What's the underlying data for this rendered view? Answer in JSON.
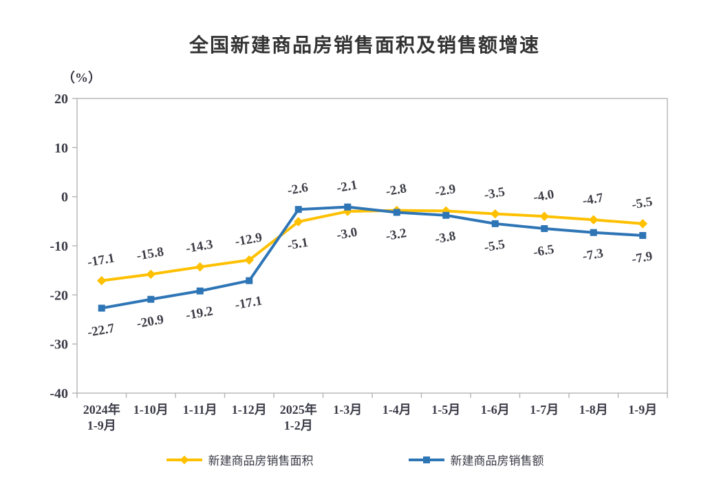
{
  "chart": {
    "title": "全国新建商品房销售面积及销售额增速",
    "unit_label": "（%）",
    "colors": {
      "area_series": "#FFC000",
      "sales_series": "#2E75B6",
      "axis_border": "#b3b3b3",
      "tick_label": "#3a3a46",
      "data_label": "#3c3c46"
    },
    "legend": [
      {
        "label": "新建商品房销售面积",
        "marker": "diamond",
        "color": "#FFC000"
      },
      {
        "label": "新建商品房销售额",
        "marker": "square",
        "color": "#2E75B6"
      }
    ]
  },
  "chart_data": {
    "type": "line",
    "title": "全国新建商品房销售面积及销售额增速",
    "ylabel": "（%）",
    "xlabel": "",
    "ylim": [
      -40,
      20
    ],
    "yticks": [
      20,
      10,
      0,
      -10,
      -20,
      -30,
      -40
    ],
    "ytick_labels": [
      "20",
      "10",
      "0",
      "-10",
      "-20",
      "-30",
      "-40"
    ],
    "grid": false,
    "legend_position": "bottom",
    "categories": [
      "2024年\n1-9月",
      "1-10月",
      "1-11月",
      "1-12月",
      "2025年\n1-2月",
      "1-3月",
      "1-4月",
      "1-5月",
      "1-6月",
      "1-7月",
      "1-8月",
      "1-9月"
    ],
    "series": [
      {
        "name": "新建商品房销售面积",
        "color": "#FFC000",
        "marker": "diamond",
        "values": [
          -17.1,
          -15.8,
          -14.3,
          -12.9,
          -5.1,
          -3.0,
          -2.8,
          -2.9,
          -3.5,
          -4.0,
          -4.7,
          -5.5
        ],
        "labels": [
          "-17.1",
          "-15.8",
          "-14.3",
          "-12.9",
          "-5.1",
          "-3.0",
          "-2.8",
          "-2.9",
          "-3.5",
          "-4.0",
          "-4.7",
          "-5.5"
        ]
      },
      {
        "name": "新建商品房销售额",
        "color": "#2E75B6",
        "marker": "square",
        "values": [
          -22.7,
          -20.9,
          -19.2,
          -17.1,
          -2.6,
          -2.1,
          -3.2,
          -3.8,
          -5.5,
          -6.5,
          -7.3,
          -7.9
        ],
        "labels": [
          "-22.7",
          "-20.9",
          "-19.2",
          "-17.1",
          "-2.6",
          "-2.1",
          "-3.2",
          "-3.8",
          "-5.5",
          "-6.5",
          "-7.3",
          "-7.9"
        ]
      }
    ]
  }
}
